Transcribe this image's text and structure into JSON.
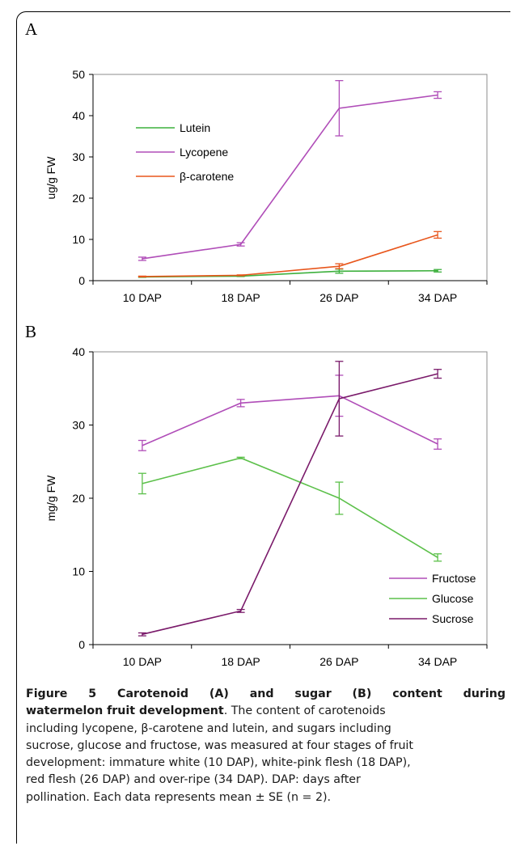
{
  "figure": {
    "panel_a_letter": "A",
    "panel_b_letter": "B",
    "caption": {
      "title_line1": "Figure 5 Carotenoid (A) and sugar (B) content during",
      "title_line2": "watermelon fruit development",
      "body_line1": ". The content of carotenoids",
      "line3": "including lycopene, β-carotene and lutein, and sugars including",
      "line4": "sucrose, glucose and fructose, was measured at four stages of fruit",
      "line5": "development: immature white (10 DAP), white-pink flesh (18 DAP),",
      "line6": "red flesh (26 DAP) and over-ripe (34 DAP). DAP: days after",
      "line7": "pollination. Each data represents mean ± SE (n = 2)."
    }
  },
  "chart_data": [
    {
      "type": "line",
      "panel": "A",
      "categories": [
        "10 DAP",
        "18 DAP",
        "26 DAP",
        "34 DAP"
      ],
      "ylabel": "ug/g FW",
      "xlabel": "",
      "ylim": [
        0,
        50
      ],
      "yticks": [
        0,
        10,
        20,
        30,
        40,
        50
      ],
      "legend_position": "upper-left",
      "grid": false,
      "series": [
        {
          "name": "Lutein",
          "color": "#3db03d",
          "values": [
            0.9,
            1.1,
            2.3,
            2.4
          ],
          "errors": [
            0.1,
            0.1,
            0.5,
            0.3
          ]
        },
        {
          "name": "Lycopene",
          "color": "#b04db8",
          "values": [
            5.3,
            8.8,
            41.8,
            45.0
          ],
          "errors": [
            0.4,
            0.4,
            6.7,
            0.8
          ]
        },
        {
          "name": "β-carotene",
          "color": "#e8561c",
          "values": [
            1.0,
            1.3,
            3.5,
            11.1
          ],
          "errors": [
            0.1,
            0.1,
            0.6,
            0.8
          ]
        }
      ]
    },
    {
      "type": "line",
      "panel": "B",
      "categories": [
        "10 DAP",
        "18 DAP",
        "26 DAP",
        "34 DAP"
      ],
      "ylabel": "mg/g FW",
      "xlabel": "",
      "ylim": [
        0,
        40
      ],
      "yticks": [
        0,
        10,
        20,
        30,
        40
      ],
      "legend_position": "lower-right",
      "grid": false,
      "series": [
        {
          "name": "Fructose",
          "color": "#b04db8",
          "values": [
            27.2,
            33.0,
            34.0,
            27.4
          ],
          "errors": [
            0.7,
            0.5,
            2.8,
            0.7
          ]
        },
        {
          "name": "Glucose",
          "color": "#5cc04a",
          "values": [
            22.0,
            25.5,
            20.0,
            11.9
          ],
          "errors": [
            1.4,
            0.1,
            2.2,
            0.5
          ]
        },
        {
          "name": "Sucrose",
          "color": "#7a1a6a",
          "values": [
            1.4,
            4.6,
            33.6,
            37.0
          ],
          "errors": [
            0.2,
            0.2,
            5.1,
            0.6
          ]
        }
      ]
    }
  ]
}
